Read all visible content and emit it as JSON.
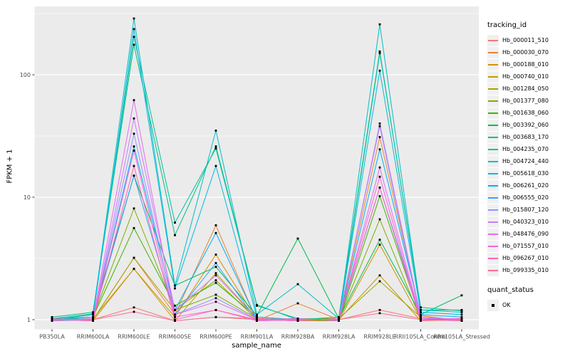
{
  "figure": {
    "background": "#FFFFFF",
    "panel_background": "#EBEBEB",
    "grid_color": "#FFFFFF",
    "tick_color": "#333333",
    "axis_text_color": "#4D4D4D",
    "point_color": "#000000"
  },
  "chart_data": {
    "type": "line",
    "title": "",
    "xlabel": "sample_name",
    "ylabel": "FPKM + 1",
    "y_scale": "log10",
    "y_ticks": [
      1,
      10,
      100
    ],
    "y_minor_ticks": [
      3.162,
      31.62,
      316.2
    ],
    "ylim": [
      0.84,
      360
    ],
    "grid": "major+minor",
    "marker": "black-square",
    "categories": [
      "PB350LA",
      "RRIM600LA",
      "RRIM600LE",
      "RRIM600SE",
      "RRIM600PE",
      "RRIM901LA",
      "RRIM928BA",
      "RRIM928LA",
      "RRIM928LE",
      "RRII105LA_Control",
      "RRII105LA_Stressed"
    ],
    "legend": {
      "title": "tracking_id",
      "position": "right"
    },
    "legend2": {
      "title": "quant_status",
      "items": [
        {
          "label": "OK",
          "marker": "black-square"
        }
      ]
    },
    "series": [
      {
        "name": "Hb_000011_510",
        "color": "#F8766D",
        "values": [
          1.02,
          1.0,
          1.26,
          0.98,
          1.05,
          1.0,
          1.02,
          1.0,
          1.2,
          1.02,
          1.0
        ]
      },
      {
        "name": "Hb_000030_070",
        "color": "#EA8331",
        "values": [
          0.98,
          1.0,
          3.2,
          1.1,
          5.9,
          0.98,
          1.36,
          1.0,
          31,
          1.08,
          0.98
        ]
      },
      {
        "name": "Hb_000188_010",
        "color": "#D89000",
        "values": [
          1.0,
          0.98,
          2.6,
          1.05,
          3.4,
          1.0,
          0.98,
          0.98,
          4.1,
          1.0,
          1.02
        ]
      },
      {
        "name": "Hb_000740_010",
        "color": "#C09B00",
        "values": [
          1.0,
          1.02,
          2.6,
          0.98,
          2.4,
          1.02,
          1.0,
          1.0,
          2.3,
          0.98,
          1.0
        ]
      },
      {
        "name": "Hb_001284_050",
        "color": "#A3A500",
        "values": [
          0.98,
          1.0,
          3.2,
          1.2,
          2.1,
          1.0,
          1.02,
          1.02,
          2.06,
          1.05,
          0.98
        ]
      },
      {
        "name": "Hb_001377_080",
        "color": "#7CAE00",
        "values": [
          1.0,
          1.05,
          8.1,
          1.2,
          1.6,
          1.02,
          0.98,
          1.0,
          6.6,
          1.0,
          1.02
        ]
      },
      {
        "name": "Hb_001638_060",
        "color": "#39B600",
        "values": [
          1.02,
          1.05,
          5.6,
          1.3,
          2.0,
          1.05,
          1.0,
          0.98,
          10.2,
          1.02,
          1.0
        ]
      },
      {
        "name": "Hb_003392_060",
        "color": "#00BB4E",
        "values": [
          1.0,
          1.1,
          15,
          1.9,
          2.7,
          1.08,
          4.6,
          1.02,
          4.5,
          1.1,
          1.58
        ]
      },
      {
        "name": "Hb_003683_170",
        "color": "#00BF7D",
        "values": [
          1.05,
          1.15,
          176,
          4.9,
          26,
          1.32,
          1.0,
          1.05,
          155,
          1.2,
          1.2
        ]
      },
      {
        "name": "Hb_004235_070",
        "color": "#00C1A3",
        "values": [
          1.02,
          1.12,
          204,
          6.2,
          25,
          1.3,
          1.02,
          1.0,
          150,
          1.26,
          1.18
        ]
      },
      {
        "name": "Hb_004724_440",
        "color": "#00BFC4",
        "values": [
          1.0,
          1.1,
          288,
          1.9,
          35,
          1.1,
          1.95,
          1.02,
          258,
          1.2,
          1.15
        ]
      },
      {
        "name": "Hb_005618_030",
        "color": "#00BAE0",
        "values": [
          1.0,
          1.05,
          236,
          1.8,
          18,
          1.05,
          1.0,
          1.0,
          108,
          1.15,
          1.1
        ]
      },
      {
        "name": "Hb_006261_020",
        "color": "#00B0F6",
        "values": [
          0.98,
          1.0,
          26,
          1.2,
          5.1,
          1.0,
          1.02,
          0.98,
          24.6,
          1.1,
          1.05
        ]
      },
      {
        "name": "Hb_006555_020",
        "color": "#35A2FF",
        "values": [
          1.0,
          1.02,
          15,
          1.1,
          2.9,
          0.98,
          1.0,
          1.0,
          12,
          1.05,
          1.0
        ]
      },
      {
        "name": "Hb_015807_120",
        "color": "#9590FF",
        "values": [
          1.02,
          1.0,
          33,
          1.1,
          1.5,
          1.0,
          0.98,
          1.02,
          38,
          1.0,
          0.98
        ]
      },
      {
        "name": "Hb_040323_010",
        "color": "#C77CFF",
        "values": [
          1.0,
          0.98,
          44,
          1.2,
          2.3,
          1.02,
          1.0,
          1.0,
          40,
          1.05,
          1.0
        ]
      },
      {
        "name": "Hb_048476_090",
        "color": "#E76BF3",
        "values": [
          0.98,
          1.02,
          62,
          1.1,
          1.4,
          1.0,
          1.02,
          0.98,
          17.5,
          1.02,
          1.02
        ]
      },
      {
        "name": "Hb_071557_010",
        "color": "#FA62DB",
        "values": [
          1.0,
          1.0,
          24,
          1.05,
          1.2,
          0.98,
          1.0,
          1.0,
          14.7,
          1.0,
          1.0
        ]
      },
      {
        "name": "Hb_096267_010",
        "color": "#FF62BC",
        "values": [
          1.02,
          0.98,
          18,
          1.0,
          1.2,
          1.0,
          0.98,
          1.02,
          12,
          0.98,
          1.02
        ]
      },
      {
        "name": "Hb_099335_010",
        "color": "#FF6A98",
        "values": [
          1.0,
          1.0,
          1.16,
          0.98,
          1.05,
          1.02,
          1.0,
          1.0,
          1.13,
          1.0,
          0.98
        ]
      }
    ]
  }
}
